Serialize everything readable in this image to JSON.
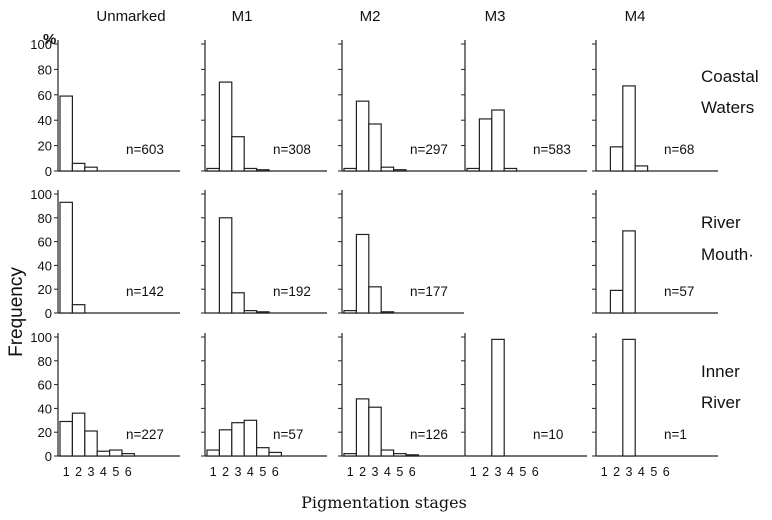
{
  "chart_data": {
    "type": "bar",
    "ylabel": "Frequency",
    "yunit": "%",
    "xlabel": "Pigmentation stages",
    "x_ticks": [
      "1",
      "2",
      "3",
      "4",
      "5",
      "6"
    ],
    "y_ticks": [
      "0",
      "20",
      "40",
      "60",
      "80",
      "100"
    ],
    "ylim": [
      0,
      100
    ],
    "columns": [
      "Unmarked",
      "M1",
      "M2",
      "M3",
      "M4"
    ],
    "rows": [
      {
        "label_lines": [
          "Coastal",
          "Waters"
        ]
      },
      {
        "label_lines": [
          "River",
          "Mouth·"
        ]
      },
      {
        "label_lines": [
          "Inner",
          "River"
        ]
      }
    ],
    "panels": [
      {
        "row": 0,
        "col": 0,
        "n": "n=603",
        "values": [
          59,
          6,
          3,
          0,
          0,
          0
        ]
      },
      {
        "row": 0,
        "col": 1,
        "n": "n=308",
        "values": [
          2,
          70,
          27,
          2,
          1,
          0
        ]
      },
      {
        "row": 0,
        "col": 2,
        "n": "n=297",
        "values": [
          2,
          55,
          37,
          3,
          1,
          0
        ]
      },
      {
        "row": 0,
        "col": 3,
        "n": "n=583",
        "values": [
          2,
          41,
          48,
          2,
          0,
          0
        ]
      },
      {
        "row": 0,
        "col": 4,
        "n": "n=68",
        "values": [
          0,
          19,
          67,
          4,
          0,
          0
        ]
      },
      {
        "row": 1,
        "col": 0,
        "n": "n=142",
        "values": [
          93,
          7,
          0,
          0,
          0,
          0
        ]
      },
      {
        "row": 1,
        "col": 1,
        "n": "n=192",
        "values": [
          0,
          80,
          17,
          2,
          1,
          0
        ]
      },
      {
        "row": 1,
        "col": 2,
        "n": "n=177",
        "values": [
          2,
          66,
          22,
          1,
          0,
          0
        ]
      },
      {
        "row": 1,
        "col": 4,
        "n": "n=57",
        "values": [
          0,
          19,
          69,
          0,
          0,
          0
        ]
      },
      {
        "row": 2,
        "col": 0,
        "n": "n=227",
        "values": [
          29,
          36,
          21,
          4,
          5,
          2
        ]
      },
      {
        "row": 2,
        "col": 1,
        "n": "n=57",
        "values": [
          5,
          22,
          28,
          30,
          7,
          3
        ]
      },
      {
        "row": 2,
        "col": 2,
        "n": "n=126",
        "values": [
          2,
          48,
          41,
          5,
          2,
          1
        ]
      },
      {
        "row": 2,
        "col": 3,
        "n": "n=10",
        "values": [
          0,
          0,
          98,
          0,
          0,
          0
        ]
      },
      {
        "row": 2,
        "col": 4,
        "n": "n=1",
        "values": [
          0,
          0,
          98,
          0,
          0,
          0
        ]
      }
    ]
  }
}
